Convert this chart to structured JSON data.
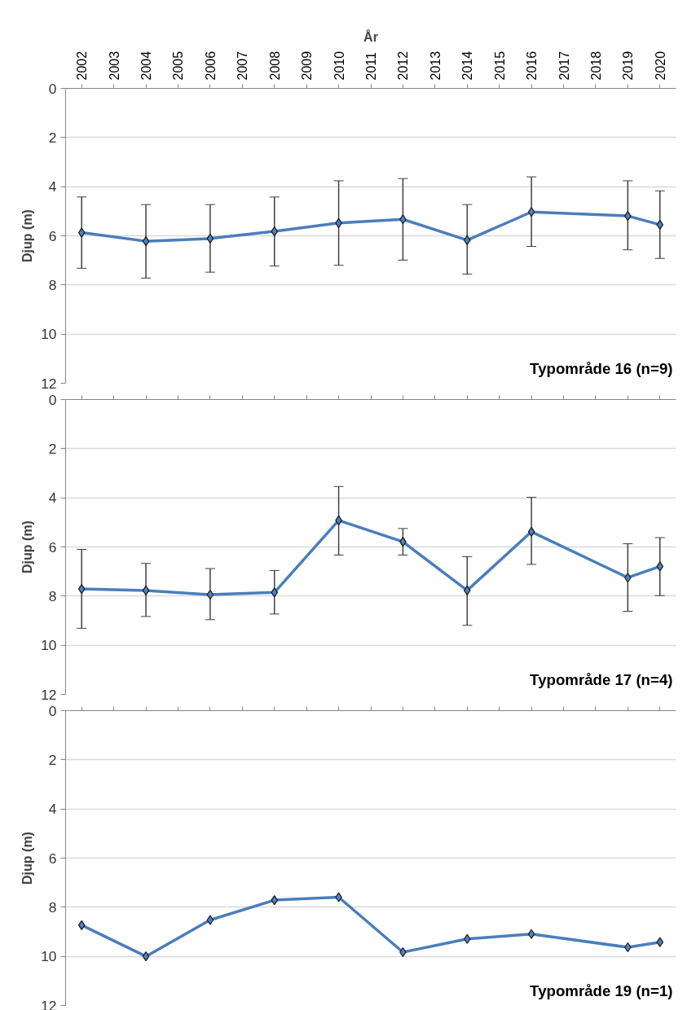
{
  "chart_data": [
    {
      "type": "line",
      "xlabel": "År",
      "ylabel": "Djup (m)",
      "categories": [
        "2002",
        "2003",
        "2004",
        "2005",
        "2006",
        "2007",
        "2008",
        "2009",
        "2010",
        "2011",
        "2012",
        "2013",
        "2014",
        "2015",
        "2016",
        "2017",
        "2018",
        "2019",
        "2020"
      ],
      "series": [
        {
          "color": "#4a7ebb",
          "values": [
            5.87,
            null,
            6.22,
            null,
            6.11,
            null,
            5.82,
            null,
            5.48,
            null,
            5.33,
            null,
            6.18,
            null,
            5.03,
            null,
            null,
            5.19,
            5.55
          ],
          "errors": [
            [
              4.42,
              7.32
            ],
            null,
            [
              4.73,
              7.72
            ],
            null,
            [
              4.73,
              7.48
            ],
            null,
            [
              4.42,
              7.23
            ],
            null,
            [
              3.76,
              7.2
            ],
            null,
            [
              3.67,
              6.99
            ],
            null,
            [
              4.73,
              7.56
            ],
            null,
            [
              3.6,
              6.43
            ],
            null,
            null,
            [
              3.76,
              6.57
            ],
            [
              4.17,
              6.92
            ]
          ]
        }
      ],
      "ylim": [
        12,
        0
      ],
      "yticks": [
        0,
        2,
        4,
        6,
        8,
        10,
        12
      ],
      "grid": "y",
      "marker": "diamond",
      "annotations": [
        "Typområde 16 (n=9)"
      ]
    },
    {
      "type": "line",
      "ylabel": "Djup (m)",
      "categories": [
        "2002",
        "2003",
        "2004",
        "2005",
        "2006",
        "2007",
        "2008",
        "2009",
        "2010",
        "2011",
        "2012",
        "2013",
        "2014",
        "2015",
        "2016",
        "2017",
        "2018",
        "2019",
        "2020"
      ],
      "series": [
        {
          "color": "#4a7ebb",
          "values": [
            7.71,
            null,
            7.77,
            null,
            7.94,
            null,
            7.85,
            null,
            4.92,
            null,
            5.79,
            null,
            7.77,
            null,
            5.38,
            null,
            null,
            7.25,
            6.79
          ],
          "errors": [
            [
              6.1,
              9.31
            ],
            null,
            [
              6.67,
              8.83
            ],
            null,
            [
              6.88,
              8.96
            ],
            null,
            [
              6.96,
              8.73
            ],
            null,
            [
              3.54,
              6.33
            ],
            null,
            [
              5.25,
              6.33
            ],
            null,
            [
              6.4,
              9.19
            ],
            null,
            [
              3.98,
              6.71
            ],
            null,
            null,
            [
              5.87,
              8.62
            ],
            [
              5.62,
              7.98
            ]
          ]
        }
      ],
      "ylim": [
        12,
        0
      ],
      "yticks": [
        0,
        2,
        4,
        6,
        8,
        10,
        12
      ],
      "grid": "y",
      "marker": "diamond",
      "tick_labels": "y",
      "annotations": [
        "Typområde 17 (n=4)"
      ]
    },
    {
      "type": "line",
      "ylabel": "Djup (m)",
      "categories": [
        "2002",
        "2003",
        "2004",
        "2005",
        "2006",
        "2007",
        "2008",
        "2009",
        "2010",
        "2011",
        "2012",
        "2013",
        "2014",
        "2015",
        "2016",
        "2017",
        "2018",
        "2019",
        "2020"
      ],
      "series": [
        {
          "color": "#4a7ebb",
          "values": [
            8.73,
            null,
            10.0,
            null,
            8.52,
            null,
            7.71,
            null,
            7.59,
            null,
            9.83,
            null,
            9.29,
            null,
            9.09,
            null,
            null,
            9.63,
            9.42
          ]
        }
      ],
      "ylim": [
        12,
        0
      ],
      "yticks": [
        0,
        2,
        4,
        6,
        8,
        10,
        12
      ],
      "grid": "y",
      "marker": "diamond",
      "tick_labels": "y",
      "annotations": [
        "Typområde 19 (n=1)"
      ]
    }
  ]
}
